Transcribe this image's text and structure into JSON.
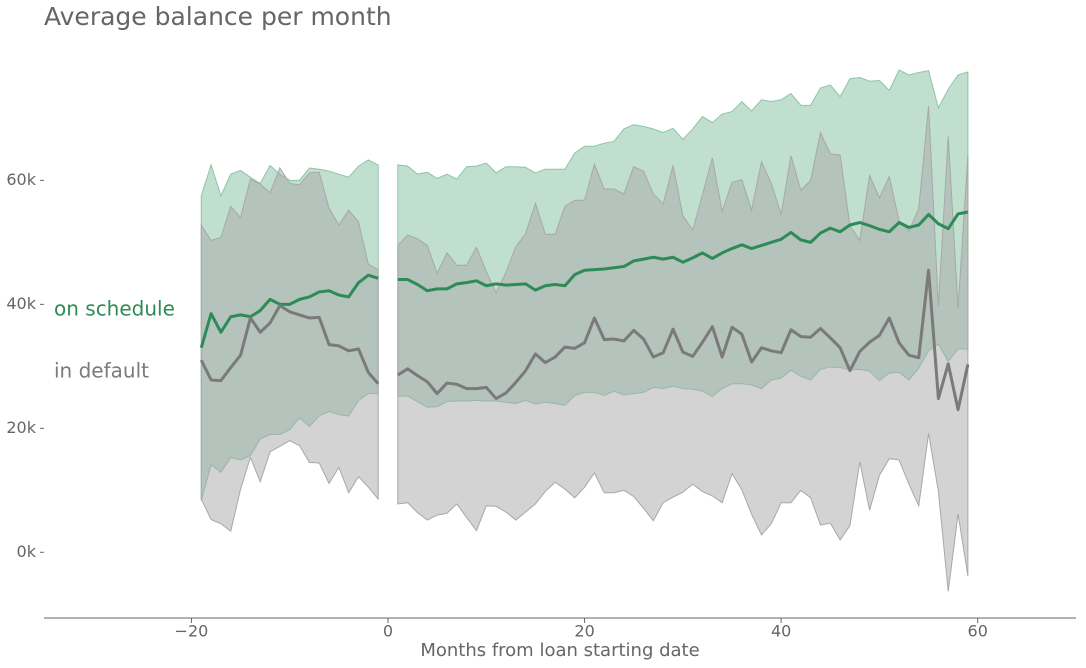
{
  "chart_data": {
    "type": "line",
    "title": "Average balance per month",
    "xlabel": "Months from loan starting date",
    "x": [
      -19,
      -18,
      -17,
      -16,
      -15,
      -14,
      -13,
      -12,
      -11,
      -10,
      -9,
      -8,
      -7,
      -6,
      -5,
      -4,
      -3,
      -2,
      -1,
      0,
      1,
      2,
      3,
      4,
      5,
      6,
      7,
      8,
      9,
      10,
      11,
      12,
      13,
      14,
      15,
      16,
      17,
      18,
      19,
      20,
      21,
      22,
      23,
      24,
      25,
      26,
      27,
      28,
      29,
      30,
      31,
      32,
      33,
      34,
      35,
      36,
      37,
      38,
      39,
      40,
      41,
      42,
      43,
      44,
      45,
      46,
      47,
      48,
      49,
      50,
      51,
      52,
      53,
      54,
      55,
      56,
      57,
      58,
      59
    ],
    "xlim": [
      -35,
      70
    ],
    "xticks": [
      {
        "value": -20,
        "label": "−20"
      },
      0,
      20,
      40,
      60
    ],
    "ylim": [
      -10600,
      82000
    ],
    "yticks": [
      {
        "value": 0,
        "label": "0k"
      },
      {
        "value": 20000,
        "label": "20k"
      },
      {
        "value": 40000,
        "label": "40k"
      },
      {
        "value": 60000,
        "label": "60k"
      }
    ],
    "series": [
      {
        "name": "on schedule",
        "color": "#2e8b57",
        "band_color": "#8cc5a6",
        "values": [
          33000,
          38500,
          35500,
          38000,
          38300,
          38000,
          39000,
          40800,
          40000,
          40000,
          40800,
          41200,
          42000,
          42200,
          41500,
          41200,
          43500,
          44700,
          44200,
          null,
          44000,
          44000,
          43200,
          42200,
          42500,
          42500,
          43300,
          43500,
          43800,
          43000,
          43300,
          43100,
          43200,
          43300,
          42300,
          43000,
          43200,
          43000,
          44800,
          45500,
          45600,
          45700,
          45900,
          46100,
          47000,
          47300,
          47600,
          47300,
          47600,
          46800,
          47500,
          48300,
          47400,
          48300,
          49000,
          49600,
          49000,
          49500,
          50000,
          50500,
          51600,
          50400,
          50000,
          51500,
          52300,
          51700,
          52800,
          53200,
          52700,
          52100,
          51700,
          53200,
          52400,
          52800,
          54500,
          53000,
          52200,
          54600,
          54900
        ],
        "upper": [
          57500,
          62500,
          57500,
          61000,
          61600,
          60500,
          59500,
          62400,
          61000,
          60000,
          60000,
          62000,
          61800,
          61500,
          61000,
          60500,
          62300,
          63300,
          62500,
          null,
          62500,
          62300,
          61000,
          61300,
          60300,
          61000,
          60200,
          62200,
          62300,
          62800,
          61200,
          62200,
          62200,
          62100,
          61200,
          61800,
          61800,
          61800,
          64400,
          65500,
          65500,
          66000,
          66300,
          68300,
          69000,
          68700,
          68300,
          67700,
          68400,
          66600,
          68300,
          70300,
          69300,
          70700,
          71100,
          72700,
          71200,
          73000,
          72700,
          73000,
          74000,
          72100,
          72100,
          74900,
          75400,
          73500,
          76400,
          76600,
          76000,
          76100,
          74500,
          77800,
          77000,
          77400,
          77700,
          71700,
          74700,
          77000,
          77500
        ],
        "lower": [
          8300,
          14100,
          12900,
          15300,
          14900,
          15600,
          18300,
          19000,
          19000,
          19800,
          21700,
          20300,
          22000,
          22700,
          22200,
          22000,
          24500,
          25600,
          25600,
          null,
          25200,
          25200,
          24300,
          23400,
          23500,
          24300,
          24400,
          24400,
          24500,
          24400,
          24400,
          24200,
          24000,
          24500,
          23900,
          24200,
          24000,
          23700,
          25300,
          25800,
          25800,
          25300,
          26000,
          25400,
          25600,
          25800,
          26600,
          26400,
          26800,
          26400,
          26300,
          26000,
          25100,
          26400,
          27200,
          27200,
          27000,
          26400,
          27800,
          28100,
          29400,
          28400,
          27800,
          29500,
          29900,
          29800,
          29400,
          29500,
          29200,
          27700,
          28900,
          29000,
          27800,
          29700,
          32500,
          33600,
          30800,
          32800,
          32800
        ]
      },
      {
        "name": "in default",
        "color": "#7a7a7a",
        "band_color": "#a8a8a8",
        "values": [
          31000,
          27800,
          27700,
          29800,
          31800,
          37800,
          35500,
          37000,
          39800,
          38800,
          38300,
          37800,
          37900,
          33500,
          33300,
          32500,
          32800,
          29000,
          27200,
          null,
          28600,
          29600,
          28500,
          27500,
          25600,
          27300,
          27100,
          26400,
          26400,
          26600,
          24800,
          25700,
          27400,
          29300,
          32000,
          30600,
          31500,
          33100,
          32900,
          33800,
          37800,
          34300,
          34400,
          34100,
          35800,
          34400,
          31500,
          32200,
          36000,
          32300,
          31600,
          33900,
          36400,
          31500,
          36300,
          35200,
          30700,
          33000,
          32500,
          32200,
          35900,
          34800,
          34700,
          36100,
          34600,
          33000,
          29300,
          32400,
          33900,
          35000,
          37800,
          33800,
          31800,
          31400,
          45500,
          24800,
          30400,
          23000,
          30300
        ],
        "upper": [
          52800,
          50300,
          50800,
          55800,
          54000,
          60200,
          59400,
          58000,
          62000,
          59500,
          59300,
          61200,
          61300,
          55500,
          52800,
          55200,
          53300,
          46500,
          45600,
          null,
          49500,
          51200,
          50600,
          49500,
          45000,
          48300,
          46300,
          46300,
          49200,
          45300,
          41900,
          45200,
          49300,
          51400,
          56300,
          51300,
          51300,
          55800,
          56800,
          56800,
          62600,
          58600,
          58600,
          57800,
          62200,
          61500,
          57800,
          56200,
          62400,
          54300,
          52000,
          57700,
          63600,
          55000,
          59700,
          60100,
          55200,
          63000,
          59500,
          54500,
          64000,
          58400,
          60000,
          67700,
          64300,
          64100,
          52700,
          50300,
          60800,
          57200,
          60600,
          53500,
          51800,
          55500,
          72000,
          39700,
          67100,
          39300,
          64000
        ],
        "lower": [
          8600,
          5300,
          4600,
          3400,
          10200,
          15300,
          11400,
          16200,
          17100,
          18000,
          17200,
          14500,
          14400,
          11100,
          13700,
          9600,
          12200,
          10500,
          8600,
          null,
          7800,
          8000,
          6400,
          5200,
          6000,
          6300,
          7800,
          5600,
          3500,
          7500,
          7400,
          6500,
          5200,
          6500,
          7800,
          9800,
          11300,
          10200,
          8800,
          10500,
          12800,
          9600,
          9600,
          10000,
          9000,
          7100,
          5100,
          8000,
          8900,
          9700,
          11000,
          9800,
          9100,
          8000,
          12700,
          10100,
          6100,
          2800,
          4600,
          8000,
          8000,
          10000,
          8800,
          4400,
          4700,
          2000,
          4300,
          14600,
          6800,
          12400,
          15100,
          14900,
          11000,
          7500,
          19200,
          9800,
          -6300,
          6200,
          -3800
        ]
      }
    ]
  }
}
